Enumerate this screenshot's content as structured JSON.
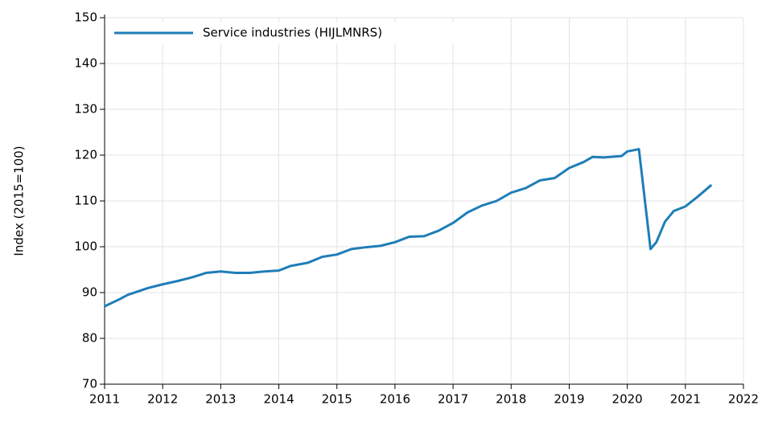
{
  "chart_data": {
    "type": "line",
    "ylabel": "Index (2015=100)",
    "x": [
      2011.0,
      2011.25,
      2011.4,
      2011.75,
      2012.0,
      2012.25,
      2012.5,
      2012.75,
      2013.0,
      2013.25,
      2013.5,
      2013.75,
      2014.0,
      2014.2,
      2014.5,
      2014.75,
      2015.0,
      2015.25,
      2015.5,
      2015.75,
      2016.0,
      2016.25,
      2016.5,
      2016.75,
      2017.0,
      2017.25,
      2017.5,
      2017.75,
      2018.0,
      2018.25,
      2018.5,
      2018.75,
      2019.0,
      2019.25,
      2019.4,
      2019.6,
      2019.9,
      2020.0,
      2020.2,
      2020.4,
      2020.5,
      2020.65,
      2020.8,
      2021.0,
      2021.2,
      2021.45
    ],
    "series": [
      {
        "name": "Service industries (HIJLMNRS)",
        "color": "#1f7db8",
        "values": [
          87,
          88.5,
          89.5,
          91,
          91.8,
          92.5,
          93.3,
          94.3,
          94.6,
          94.3,
          94.3,
          94.6,
          94.8,
          95.8,
          96.5,
          97.8,
          98.3,
          99.5,
          99.9,
          100.2,
          101.0,
          102.2,
          102.3,
          103.5,
          105.2,
          107.5,
          109.0,
          110,
          111.8,
          112.8,
          114.5,
          115,
          117.2,
          118.5,
          119.6,
          119.5,
          119.8,
          120.8,
          121.3,
          99.5,
          101,
          105.5,
          107.8,
          108.8,
          110.8,
          113.5
        ]
      }
    ],
    "xlim": [
      2011,
      2022
    ],
    "xticks": [
      2011,
      2012,
      2013,
      2014,
      2015,
      2016,
      2017,
      2018,
      2019,
      2020,
      2021,
      2022
    ],
    "ylim": [
      70,
      150
    ],
    "yticks": [
      70,
      80,
      90,
      100,
      110,
      120,
      130,
      140,
      150
    ],
    "grid": true,
    "legend": "top-left"
  }
}
